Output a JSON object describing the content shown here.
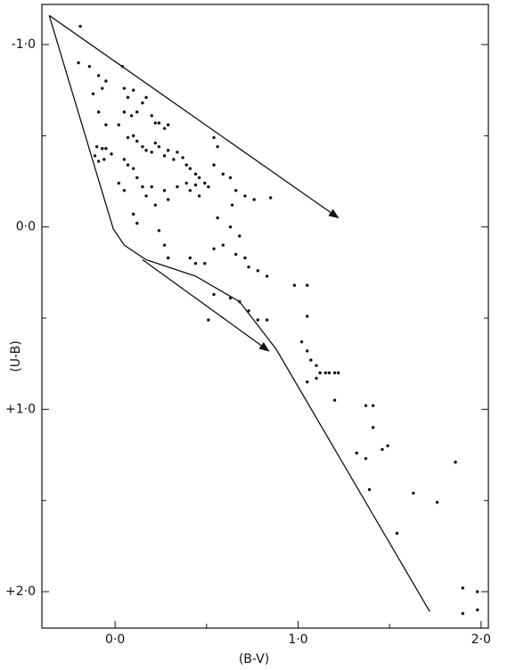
{
  "chart_data": {
    "type": "scatter",
    "x_label": "(B-V)",
    "y_label": "(U-B)",
    "color": "#111111",
    "xlim": [
      -0.4,
      2.04
    ],
    "ylim": [
      -1.22,
      2.2
    ],
    "y_inverted": true,
    "xticks": [
      {
        "value": 0,
        "label": "0·0"
      },
      {
        "value": 1,
        "label": "1·0"
      },
      {
        "value": 2,
        "label": "2·0"
      }
    ],
    "yticks": [
      {
        "value": -1,
        "label": "-1·0"
      },
      {
        "value": 0,
        "label": "0·0"
      },
      {
        "value": 1,
        "label": "+1·0"
      },
      {
        "value": 2,
        "label": "+2·0"
      }
    ],
    "xminor": [
      0.5,
      1.5
    ],
    "yminor": [
      -0.5,
      0.5,
      1.5
    ],
    "x": [
      -0.19,
      -0.2,
      -0.14,
      -0.09,
      -0.05,
      0.04,
      -0.12,
      -0.07,
      -0.09,
      -0.05,
      -0.1,
      -0.07,
      -0.05,
      -0.11,
      -0.02,
      -0.09,
      -0.06,
      0.05,
      0.07,
      0.1,
      0.05,
      0.09,
      0.02,
      0.12,
      0.15,
      0.17,
      0.2,
      0.22,
      0.24,
      0.27,
      0.29,
      0.07,
      0.1,
      0.12,
      0.15,
      0.17,
      0.2,
      0.22,
      0.24,
      0.27,
      0.29,
      0.32,
      0.34,
      0.37,
      0.39,
      0.41,
      0.44,
      0.46,
      0.49,
      0.51,
      0.05,
      0.07,
      0.1,
      0.12,
      0.15,
      0.02,
      0.05,
      0.1,
      0.12,
      0.17,
      0.2,
      0.22,
      0.27,
      0.29,
      0.34,
      0.39,
      0.41,
      0.44,
      0.46,
      0.54,
      0.56,
      0.54,
      0.59,
      0.63,
      0.66,
      0.71,
      0.76,
      0.85,
      0.64,
      0.56,
      0.63,
      0.68,
      0.24,
      0.27,
      0.29,
      0.41,
      0.44,
      0.49,
      0.54,
      0.59,
      0.66,
      0.71,
      0.73,
      0.78,
      0.83,
      0.54,
      0.63,
      0.68,
      0.73,
      0.78,
      0.83,
      0.51,
      0.98,
      1.05,
      1.05,
      1.02,
      1.05,
      1.07,
      1.1,
      1.12,
      1.05,
      1.1,
      1.15,
      1.17,
      1.2,
      1.22,
      1.2,
      1.37,
      1.41,
      1.41,
      1.46,
      1.32,
      1.37,
      1.49,
      1.39,
      1.54,
      1.63,
      1.76,
      1.86,
      1.9,
      1.9,
      1.98,
      1.98
    ],
    "y": [
      -1.1,
      -0.9,
      -0.88,
      -0.83,
      -0.8,
      -0.88,
      -0.73,
      -0.76,
      -0.63,
      -0.56,
      -0.44,
      -0.43,
      -0.43,
      -0.39,
      -0.4,
      -0.36,
      -0.37,
      -0.76,
      -0.71,
      -0.75,
      -0.63,
      -0.61,
      -0.56,
      -0.63,
      -0.68,
      -0.71,
      -0.61,
      -0.57,
      -0.57,
      -0.54,
      -0.56,
      -0.49,
      -0.5,
      -0.47,
      -0.44,
      -0.42,
      -0.41,
      -0.46,
      -0.44,
      -0.39,
      -0.42,
      -0.37,
      -0.41,
      -0.38,
      -0.34,
      -0.32,
      -0.29,
      -0.27,
      -0.24,
      -0.22,
      -0.37,
      -0.34,
      -0.32,
      -0.27,
      -0.22,
      -0.24,
      -0.2,
      -0.07,
      -0.02,
      -0.17,
      -0.22,
      -0.12,
      -0.2,
      -0.15,
      -0.22,
      -0.24,
      -0.2,
      -0.23,
      -0.17,
      -0.49,
      -0.44,
      -0.34,
      -0.29,
      -0.27,
      -0.2,
      -0.17,
      -0.15,
      -0.16,
      -0.12,
      -0.05,
      0,
      0.05,
      0.02,
      0.1,
      0.17,
      0.17,
      0.2,
      0.2,
      0.12,
      0.1,
      0.15,
      0.17,
      0.22,
      0.24,
      0.27,
      0.37,
      0.39,
      0.41,
      0.46,
      0.51,
      0.51,
      0.51,
      0.32,
      0.32,
      0.49,
      0.63,
      0.68,
      0.73,
      0.76,
      0.8,
      0.85,
      0.83,
      0.8,
      0.8,
      0.8,
      0.8,
      0.95,
      0.98,
      0.98,
      1.1,
      1.22,
      1.24,
      1.27,
      1.2,
      1.44,
      1.68,
      1.46,
      1.51,
      1.29,
      1.98,
      2.12,
      2,
      2.1
    ],
    "curves": [
      {
        "x": [
          -0.36,
          -0.01,
          0.05,
          0.17,
          0.44,
          0.68,
          0.88,
          1.72
        ],
        "y": [
          -1.16,
          0.01,
          0.1,
          0.18,
          0.27,
          0.41,
          0.67,
          2.11
        ],
        "arrow": false
      },
      {
        "x": [
          -0.36,
          1.22
        ],
        "y": [
          -1.16,
          -0.05
        ],
        "arrow": true
      },
      {
        "x": [
          0.15,
          0.84
        ],
        "y": [
          0.18,
          0.68
        ],
        "arrow": true
      }
    ]
  }
}
